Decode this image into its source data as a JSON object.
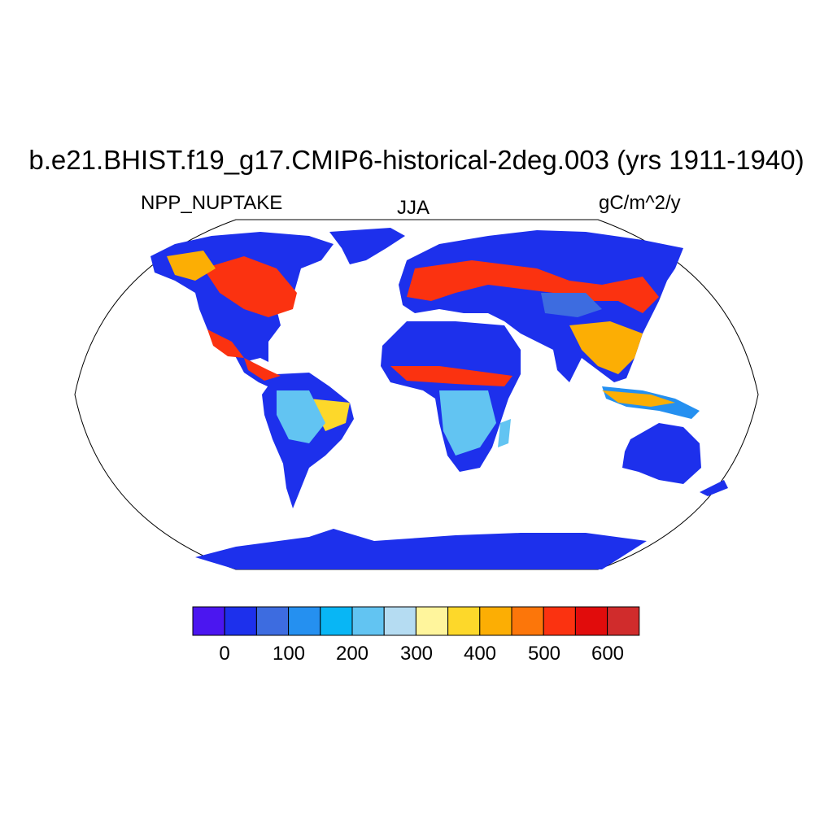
{
  "title": "b.e21.BHIST.f19_g17.CMIP6-historical-2deg.003 (yrs 1911-1940)",
  "subtitle_left": "NPP_NUPTAKE",
  "subtitle_center": "JJA",
  "subtitle_right": "gC/m^2/y",
  "colorbar": {
    "colors": [
      "#4b16f0",
      "#1d30ec",
      "#3d6ce0",
      "#2590f0",
      "#08b6f5",
      "#62c4f2",
      "#b5dcf2",
      "#fff59c",
      "#fdd82a",
      "#fcae04",
      "#fc760a",
      "#fb3210",
      "#e10c0c",
      "#d02c2c"
    ],
    "labels": [
      "0",
      "100",
      "200",
      "300",
      "400",
      "500",
      "600"
    ]
  }
}
